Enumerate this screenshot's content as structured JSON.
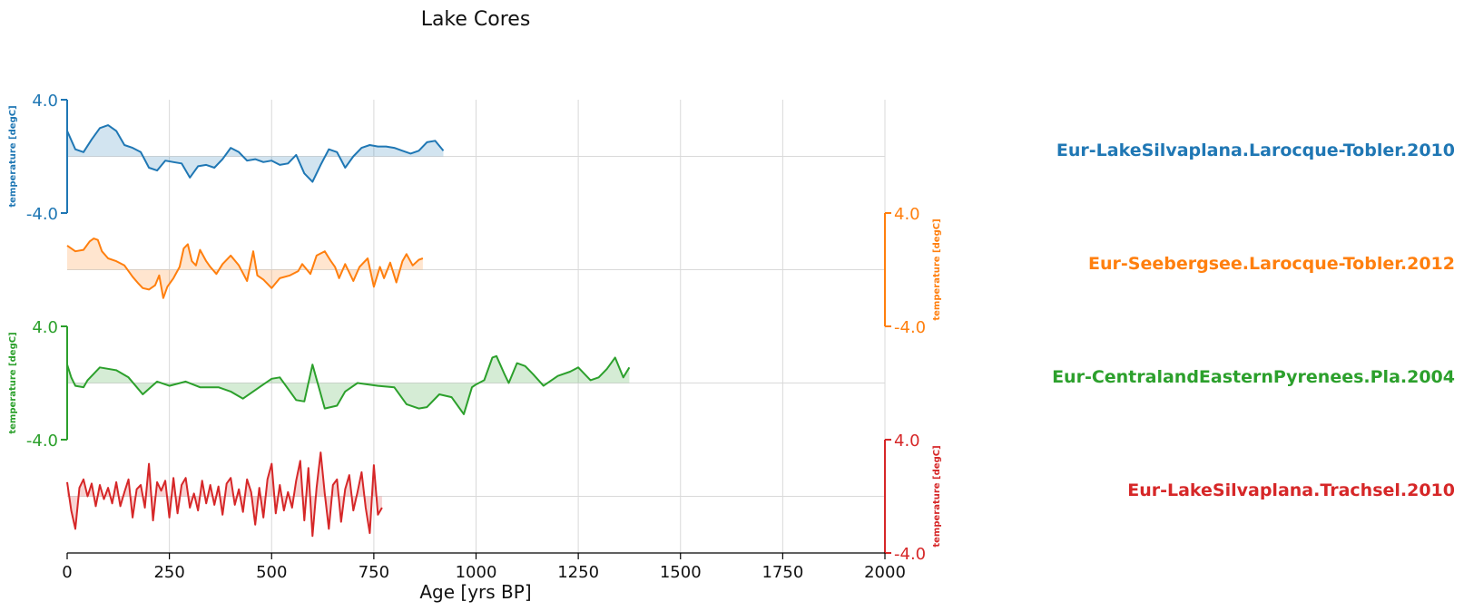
{
  "chart_data": {
    "type": "line",
    "title": "Lake Cores",
    "xlabel": "Age [yrs BP]",
    "xlim": [
      0,
      2000
    ],
    "x_ticks": [
      "0",
      "250",
      "500",
      "750",
      "1000",
      "1250",
      "1500",
      "1750",
      "2000"
    ],
    "grid": true,
    "series": [
      {
        "name": "Eur-LakeSilvaplana.Larocque-Tobler.2010",
        "ylabel": "temperature [degC]",
        "ylim": [
          -4.0,
          4.0
        ],
        "y_ticks": [
          "4.0",
          "-4.0"
        ],
        "yaxis_side": "left",
        "color": "#1f77b4",
        "x": [
          0,
          20,
          40,
          60,
          80,
          100,
          120,
          140,
          160,
          180,
          200,
          220,
          240,
          260,
          280,
          300,
          320,
          340,
          360,
          380,
          400,
          420,
          440,
          460,
          480,
          500,
          520,
          540,
          560,
          580,
          600,
          620,
          640,
          660,
          680,
          700,
          720,
          740,
          760,
          780,
          800,
          820,
          840,
          860,
          880,
          900,
          920
        ],
        "values": [
          1.8,
          0.5,
          0.3,
          1.2,
          2.0,
          2.2,
          1.8,
          0.8,
          0.6,
          0.3,
          -0.8,
          -1.0,
          -0.3,
          -0.4,
          -0.5,
          -1.5,
          -0.7,
          -0.6,
          -0.8,
          -0.2,
          0.6,
          0.3,
          -0.3,
          -0.2,
          -0.4,
          -0.3,
          -0.6,
          -0.5,
          0.1,
          -1.2,
          -1.8,
          -0.6,
          0.5,
          0.3,
          -0.8,
          0.0,
          0.6,
          0.8,
          0.7,
          0.7,
          0.6,
          0.4,
          0.2,
          0.4,
          1.0,
          1.1,
          0.4
        ]
      },
      {
        "name": "Eur-Seebergsee.Larocque-Tobler.2012",
        "ylabel": "temperature [degC]",
        "ylim": [
          -4.0,
          4.0
        ],
        "y_ticks": [
          "4.0",
          "-4.0"
        ],
        "yaxis_side": "right",
        "color": "#ff7f0e",
        "x": [
          0,
          20,
          40,
          55,
          65,
          75,
          85,
          100,
          120,
          140,
          160,
          175,
          185,
          200,
          215,
          225,
          235,
          245,
          260,
          275,
          285,
          295,
          305,
          315,
          325,
          340,
          350,
          365,
          380,
          400,
          420,
          440,
          455,
          465,
          480,
          500,
          520,
          545,
          565,
          575,
          595,
          610,
          630,
          645,
          655,
          665,
          680,
          700,
          715,
          735,
          750,
          765,
          775,
          790,
          805,
          820,
          830,
          845,
          860,
          870
        ],
        "values": [
          1.7,
          1.3,
          1.4,
          2.0,
          2.2,
          2.1,
          1.3,
          0.8,
          0.6,
          0.3,
          -0.5,
          -1.0,
          -1.3,
          -1.4,
          -1.1,
          -0.4,
          -2.0,
          -1.2,
          -0.6,
          0.2,
          1.5,
          1.8,
          0.6,
          0.3,
          1.4,
          0.6,
          0.2,
          -0.3,
          0.4,
          1.0,
          0.3,
          -0.8,
          1.3,
          -0.4,
          -0.7,
          -1.3,
          -0.6,
          -0.4,
          -0.1,
          0.4,
          -0.3,
          1.0,
          1.3,
          0.6,
          0.2,
          -0.6,
          0.4,
          -0.8,
          0.2,
          0.8,
          -1.2,
          0.2,
          -0.6,
          0.5,
          -0.9,
          0.6,
          1.1,
          0.3,
          0.7,
          0.8
        ]
      },
      {
        "name": "Eur-CentralandEasternPyrenees.Pla.2004",
        "ylabel": "temperature [degC]",
        "ylim": [
          -4.0,
          4.0
        ],
        "y_ticks": [
          "4.0",
          "-4.0"
        ],
        "yaxis_side": "left",
        "color": "#2ca02c",
        "x": [
          0,
          10,
          20,
          40,
          50,
          80,
          120,
          150,
          185,
          220,
          250,
          290,
          325,
          370,
          400,
          430,
          470,
          500,
          520,
          560,
          580,
          600,
          630,
          660,
          680,
          710,
          760,
          800,
          830,
          860,
          880,
          910,
          940,
          970,
          990,
          1000,
          1020,
          1040,
          1050,
          1070,
          1080,
          1100,
          1120,
          1140,
          1165,
          1200,
          1230,
          1250,
          1280,
          1300,
          1320,
          1340,
          1360,
          1375
        ],
        "values": [
          1.3,
          0.4,
          -0.2,
          -0.3,
          0.2,
          1.1,
          0.9,
          0.4,
          -0.8,
          0.1,
          -0.2,
          0.1,
          -0.3,
          -0.3,
          -0.6,
          -1.1,
          -0.3,
          0.3,
          0.4,
          -1.2,
          -1.3,
          1.3,
          -1.8,
          -1.6,
          -0.6,
          0.0,
          -0.2,
          -0.3,
          -1.5,
          -1.8,
          -1.7,
          -0.8,
          -1.0,
          -2.2,
          -0.3,
          -0.1,
          0.2,
          1.8,
          1.9,
          0.6,
          0.0,
          1.4,
          1.2,
          0.6,
          -0.2,
          0.5,
          0.8,
          1.1,
          0.2,
          0.4,
          1.0,
          1.8,
          0.4,
          1.1
        ]
      },
      {
        "name": "Eur-LakeSilvaplana.Trachsel.2010",
        "ylabel": "temperature [degC]",
        "ylim": [
          -4.0,
          4.0
        ],
        "y_ticks": [
          "4.0",
          "-4.0"
        ],
        "yaxis_side": "right",
        "color": "#d62728",
        "x": [
          0,
          10,
          20,
          30,
          40,
          50,
          60,
          70,
          80,
          90,
          100,
          110,
          120,
          130,
          140,
          150,
          160,
          170,
          180,
          190,
          200,
          210,
          220,
          230,
          240,
          250,
          260,
          270,
          280,
          290,
          300,
          310,
          320,
          330,
          340,
          350,
          360,
          370,
          380,
          390,
          400,
          410,
          420,
          430,
          440,
          450,
          460,
          470,
          480,
          490,
          500,
          510,
          520,
          530,
          540,
          550,
          560,
          570,
          580,
          590,
          600,
          610,
          620,
          630,
          640,
          650,
          660,
          670,
          680,
          690,
          700,
          710,
          720,
          730,
          740,
          750,
          760,
          770
        ],
        "values": [
          1.0,
          -1.0,
          -2.3,
          0.6,
          1.2,
          0.0,
          0.9,
          -0.7,
          0.8,
          -0.2,
          0.6,
          -0.5,
          1.0,
          -0.7,
          0.3,
          1.2,
          -1.5,
          0.5,
          0.8,
          -0.8,
          2.3,
          -1.7,
          1.0,
          0.4,
          1.1,
          -1.5,
          1.3,
          -1.2,
          0.8,
          1.3,
          -0.8,
          0.2,
          -1.0,
          1.1,
          -0.5,
          0.8,
          -0.6,
          0.7,
          -1.3,
          0.9,
          1.3,
          -0.6,
          0.5,
          -1.1,
          1.2,
          0.3,
          -2.0,
          0.6,
          -1.5,
          1.2,
          2.3,
          -1.2,
          0.8,
          -1.0,
          0.3,
          -0.8,
          1.1,
          2.5,
          -1.7,
          2.0,
          -2.8,
          0.6,
          3.1,
          0.2,
          -2.3,
          0.8,
          1.2,
          -1.8,
          0.5,
          1.5,
          -1.0,
          0.3,
          1.7,
          -0.8,
          -2.6,
          2.2,
          -1.3,
          -0.8
        ]
      }
    ]
  }
}
